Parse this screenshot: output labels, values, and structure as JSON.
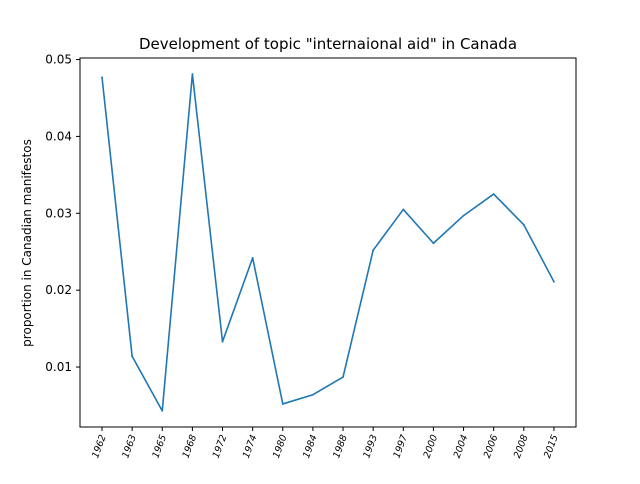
{
  "chart_data": {
    "type": "line",
    "title": "Development of topic \"internaional aid\" in Canada",
    "xlabel": "",
    "ylabel": "proportion in Canadian manifestos",
    "categories": [
      "1962",
      "1963",
      "1965",
      "1968",
      "1972",
      "1974",
      "1980",
      "1984",
      "1988",
      "1993",
      "1997",
      "2000",
      "2004",
      "2006",
      "2008",
      "2015"
    ],
    "series": [
      {
        "values": [
          0.0477,
          0.0114,
          0.0043,
          0.0481,
          0.0133,
          0.0242,
          0.0052,
          0.0064,
          0.0087,
          0.0252,
          0.0305,
          0.0261,
          0.0297,
          0.0325,
          0.0285,
          0.0211
        ],
        "color": "#1f77b4"
      }
    ],
    "ylim": [
      0.0022,
      0.0502
    ],
    "yticks": [
      0.01,
      0.02,
      0.03,
      0.04,
      0.05
    ],
    "ytick_labels": [
      "0.01",
      "0.02",
      "0.03",
      "0.04",
      "0.05"
    ],
    "grid": false,
    "legend": "none",
    "xtick_rotation": "rotated"
  }
}
